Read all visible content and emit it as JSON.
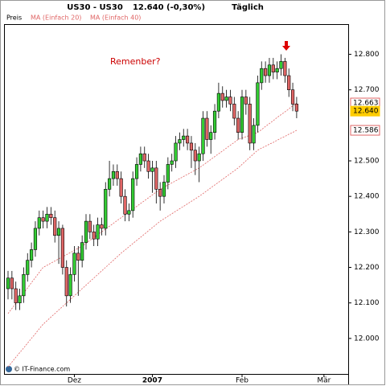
{
  "chart_data": {
    "type": "candlestick",
    "header": {
      "symbol": "US30 - US30",
      "price": "12.640 (-0,30%)",
      "period": "Täglich"
    },
    "annotation": "Remenber?",
    "footer": "© IT-Finance.com",
    "categories": [
      null,
      null,
      null,
      null,
      null,
      null,
      null,
      null,
      null,
      null,
      null,
      null,
      null,
      null,
      null,
      null,
      null,
      "Dez",
      null,
      null,
      null,
      null,
      null,
      null,
      null,
      null,
      null,
      null,
      null,
      null,
      null,
      null,
      null,
      null,
      null,
      null,
      null,
      "2007",
      null,
      null,
      null,
      null,
      null,
      null,
      null,
      null,
      null,
      null,
      null,
      null,
      null,
      null,
      null,
      null,
      null,
      null,
      null,
      null,
      null,
      null,
      "Feb",
      null,
      null,
      null,
      null,
      null,
      null,
      null,
      null,
      null,
      null,
      null,
      null,
      null,
      null,
      null,
      null,
      null,
      null,
      null,
      null,
      "Mär"
    ],
    "price": {
      "name": "Preis",
      "up_color": "#33cc33",
      "down_color": "#e06666",
      "value_label": "12.640",
      "open": [
        12.14,
        12.17,
        12.14,
        12.1,
        12.12,
        12.18,
        12.22,
        12.25,
        12.31,
        12.34,
        12.33,
        12.35,
        12.34,
        12.29,
        12.31,
        12.2,
        12.12,
        12.18,
        12.24,
        12.22,
        12.27,
        12.33,
        12.3,
        12.28,
        12.32,
        12.31,
        12.42,
        12.45,
        12.47,
        12.45,
        12.4,
        12.35,
        12.36,
        12.45,
        12.49,
        12.52,
        12.5,
        12.47,
        12.48,
        12.42,
        12.4,
        12.44,
        12.49,
        12.5,
        12.55,
        12.56,
        12.57,
        12.55,
        12.53,
        12.5,
        12.52,
        12.62,
        12.56,
        12.58,
        12.64,
        12.69,
        12.67,
        12.68,
        12.66,
        12.62,
        12.58,
        12.68,
        12.66,
        12.55,
        12.6,
        12.72,
        12.76,
        12.74,
        12.77,
        12.75,
        12.76,
        12.78,
        12.74,
        12.7,
        12.66,
        null,
        null,
        null,
        null,
        null,
        null,
        null
      ],
      "high": [
        12.19,
        12.19,
        12.16,
        12.14,
        12.2,
        12.24,
        12.27,
        12.33,
        12.36,
        12.36,
        12.37,
        12.37,
        12.36,
        12.33,
        12.32,
        12.22,
        12.2,
        12.26,
        12.26,
        12.29,
        12.35,
        12.35,
        12.32,
        12.34,
        12.34,
        12.44,
        12.5,
        12.49,
        12.49,
        12.47,
        12.42,
        12.38,
        12.47,
        12.51,
        12.54,
        12.54,
        12.52,
        12.5,
        12.5,
        12.44,
        12.46,
        12.51,
        12.52,
        12.57,
        12.58,
        12.59,
        12.59,
        12.57,
        12.55,
        12.54,
        12.64,
        12.64,
        12.6,
        12.66,
        12.72,
        12.71,
        12.7,
        12.7,
        12.68,
        12.64,
        12.7,
        12.7,
        12.68,
        12.62,
        12.74,
        12.78,
        12.78,
        12.79,
        12.79,
        12.78,
        12.8,
        12.79,
        12.76,
        12.72,
        12.68,
        null,
        null,
        null,
        null,
        null,
        null,
        null
      ],
      "low": [
        12.11,
        12.11,
        12.08,
        12.08,
        12.1,
        12.16,
        12.2,
        12.23,
        12.29,
        12.31,
        12.31,
        12.32,
        12.27,
        12.21,
        12.18,
        12.09,
        12.1,
        12.16,
        12.12,
        12.2,
        12.25,
        12.28,
        12.26,
        12.26,
        12.29,
        12.29,
        12.4,
        12.43,
        12.43,
        12.38,
        12.33,
        12.33,
        12.34,
        12.43,
        12.47,
        12.48,
        12.45,
        12.41,
        12.38,
        12.36,
        12.38,
        12.42,
        12.47,
        12.48,
        12.53,
        12.54,
        12.53,
        12.48,
        12.46,
        12.44,
        12.5,
        12.54,
        12.52,
        12.56,
        12.62,
        12.65,
        12.65,
        12.64,
        12.6,
        12.56,
        12.56,
        12.63,
        12.53,
        12.53,
        12.58,
        12.7,
        12.72,
        12.72,
        12.73,
        12.73,
        12.74,
        12.72,
        12.68,
        12.64,
        12.62,
        null,
        null,
        null,
        null,
        null,
        null,
        null
      ],
      "close": [
        12.17,
        12.14,
        12.1,
        12.12,
        12.18,
        12.22,
        12.25,
        12.31,
        12.34,
        12.33,
        12.35,
        12.34,
        12.29,
        12.31,
        12.2,
        12.12,
        12.18,
        12.24,
        12.22,
        12.27,
        12.33,
        12.3,
        12.28,
        12.32,
        12.31,
        12.42,
        12.45,
        12.47,
        12.45,
        12.4,
        12.35,
        12.36,
        12.45,
        12.49,
        12.52,
        12.5,
        12.47,
        12.48,
        12.42,
        12.4,
        12.44,
        12.49,
        12.5,
        12.55,
        12.56,
        12.57,
        12.55,
        12.53,
        12.5,
        12.52,
        12.62,
        12.56,
        12.58,
        12.64,
        12.69,
        12.67,
        12.68,
        12.66,
        12.62,
        12.58,
        12.68,
        12.66,
        12.55,
        12.6,
        12.72,
        12.76,
        12.74,
        12.77,
        12.75,
        12.76,
        12.78,
        12.74,
        12.7,
        12.66,
        12.64,
        null,
        null,
        null,
        null,
        null,
        null,
        null
      ]
    },
    "series": [
      {
        "name": "MA (Einfach 20)",
        "color": "#e06666",
        "value_label": "12.663",
        "values": [
          12.07,
          12.084,
          12.099,
          12.113,
          12.128,
          12.142,
          12.157,
          12.171,
          12.186,
          12.2,
          12.206,
          12.212,
          12.218,
          12.224,
          12.23,
          12.236,
          12.242,
          12.248,
          12.254,
          12.26,
          12.268,
          12.276,
          12.284,
          12.292,
          12.3,
          12.308,
          12.316,
          12.324,
          12.332,
          12.34,
          12.348,
          12.356,
          12.364,
          12.372,
          12.38,
          12.388,
          12.396,
          12.404,
          12.412,
          12.42,
          12.426,
          12.432,
          12.438,
          12.444,
          12.45,
          12.456,
          12.462,
          12.468,
          12.474,
          12.48,
          12.488,
          12.496,
          12.504,
          12.512,
          12.52,
          12.528,
          12.536,
          12.544,
          12.552,
          12.56,
          12.564,
          12.568,
          12.572,
          12.576,
          12.58,
          12.588,
          12.597,
          12.605,
          12.613,
          12.622,
          12.63,
          12.638,
          12.646,
          12.655,
          12.663,
          null,
          null,
          null,
          null,
          null,
          null,
          null
        ]
      },
      {
        "name": "MA (Einfach 40)",
        "color": "#e06666",
        "value_label": "12.586",
        "values": [
          11.92,
          11.933,
          11.947,
          11.96,
          11.973,
          11.987,
          12.0,
          12.013,
          12.027,
          12.04,
          12.05,
          12.06,
          12.07,
          12.08,
          12.09,
          12.1,
          12.11,
          12.12,
          12.13,
          12.14,
          12.15,
          12.16,
          12.17,
          12.18,
          12.19,
          12.2,
          12.21,
          12.22,
          12.23,
          12.24,
          12.249,
          12.258,
          12.267,
          12.276,
          12.285,
          12.294,
          12.303,
          12.312,
          12.321,
          12.33,
          12.337,
          12.344,
          12.351,
          12.358,
          12.365,
          12.372,
          12.379,
          12.386,
          12.393,
          12.4,
          12.408,
          12.416,
          12.424,
          12.432,
          12.44,
          12.448,
          12.456,
          12.464,
          12.472,
          12.48,
          12.49,
          12.5,
          12.51,
          12.52,
          12.53,
          12.536,
          12.541,
          12.547,
          12.552,
          12.558,
          12.564,
          12.569,
          12.575,
          12.58,
          12.586,
          null,
          null,
          null,
          null,
          null,
          null,
          null
        ]
      }
    ],
    "ylim": [
      11.9,
      12.885
    ],
    "yticks": [
      {
        "value": 12.0,
        "label": "12.000"
      },
      {
        "value": 12.1,
        "label": "12.100"
      },
      {
        "value": 12.2,
        "label": "12.200"
      },
      {
        "value": 12.3,
        "label": "12.300"
      },
      {
        "value": 12.4,
        "label": "12.400"
      },
      {
        "value": 12.5,
        "label": "12.500"
      },
      {
        "value": 12.7,
        "label": "12.700"
      },
      {
        "value": 12.8,
        "label": "12.800"
      }
    ],
    "grid": false
  }
}
